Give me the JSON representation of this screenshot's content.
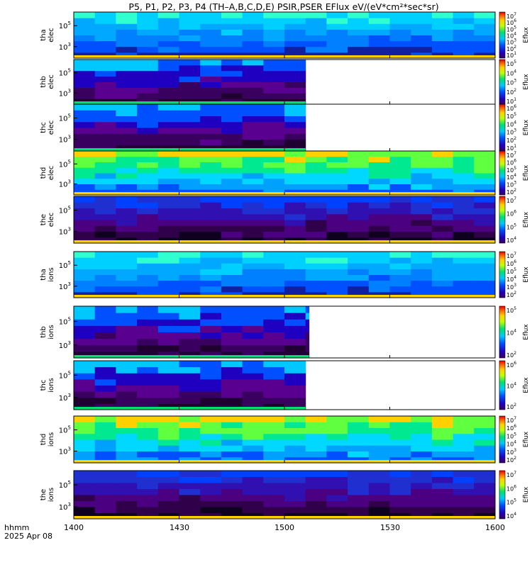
{
  "title": "P5, P1, P2, P3, P4 (TH–A,B,C,D,E) PSIR,PSER EFlux eV/(eV*cm²*sec*sr)",
  "footer": {
    "time_label": "hhmm",
    "date_label": "2025 Apr 08"
  },
  "chart_data": {
    "type": "heatmap",
    "x_axis": {
      "ticks": [
        "1400",
        "1430",
        "1500",
        "1530",
        "1600"
      ],
      "range": [
        "14:00",
        "16:00"
      ]
    },
    "colorbar_label": "Eflux",
    "panels": [
      {
        "probe": "tha",
        "species": "elec",
        "label_line1": "tha",
        "label_line2": "elec",
        "yticks": [
          {
            "base": "10",
            "exp": "5",
            "value": 100000
          },
          {
            "base": "10",
            "exp": "3",
            "value": 1000
          }
        ],
        "ylog_range": [
          1.9,
          6.3
        ],
        "palette": "blue",
        "cbar_ticks": [
          {
            "base": "10",
            "exp": "7"
          },
          {
            "base": "10",
            "exp": "6"
          },
          {
            "base": "10",
            "exp": "5"
          },
          {
            "base": "10",
            "exp": "4"
          },
          {
            "base": "10",
            "exp": "3"
          },
          {
            "base": "10",
            "exp": "2"
          },
          {
            "base": "10",
            "exp": "1"
          }
        ]
      },
      {
        "probe": "thb",
        "species": "elec",
        "label_line1": "thb",
        "label_line2": "elec",
        "yticks": [
          {
            "base": "10",
            "exp": "5",
            "value": 100000
          },
          {
            "base": "10",
            "exp": "3",
            "value": 1000
          }
        ],
        "ylog_range": [
          1.9,
          6.3
        ],
        "palette": "noisy",
        "cbar_ticks": [
          {
            "base": "10",
            "exp": "5"
          },
          {
            "base": "10",
            "exp": "4"
          },
          {
            "base": "10",
            "exp": "3"
          },
          {
            "base": "10",
            "exp": "2"
          },
          {
            "base": "10",
            "exp": "1"
          }
        ],
        "data_end": "15:06"
      },
      {
        "probe": "thc",
        "species": "elec",
        "label_line1": "thc",
        "label_line2": "elec",
        "yticks": [
          {
            "base": "10",
            "exp": "5",
            "value": 100000
          },
          {
            "base": "10",
            "exp": "3",
            "value": 1000
          }
        ],
        "ylog_range": [
          1.9,
          6.3
        ],
        "palette": "noisy",
        "cbar_ticks": [
          {
            "base": "10",
            "exp": "6"
          },
          {
            "base": "10",
            "exp": "5"
          },
          {
            "base": "10",
            "exp": "4"
          },
          {
            "base": "10",
            "exp": "3"
          },
          {
            "base": "10",
            "exp": "2"
          },
          {
            "base": "10",
            "exp": "1"
          }
        ],
        "data_end": "15:06"
      },
      {
        "probe": "thd",
        "species": "elec",
        "label_line1": "thd",
        "label_line2": "elec",
        "yticks": [
          {
            "base": "10",
            "exp": "5",
            "value": 100000
          },
          {
            "base": "10",
            "exp": "3",
            "value": 1000
          }
        ],
        "ylog_range": [
          1.9,
          6.3
        ],
        "palette": "green",
        "cbar_ticks": [
          {
            "base": "10",
            "exp": "7"
          },
          {
            "base": "10",
            "exp": "6"
          },
          {
            "base": "10",
            "exp": "5"
          },
          {
            "base": "10",
            "exp": "4"
          },
          {
            "base": "10",
            "exp": "3"
          },
          {
            "base": "10",
            "exp": "2"
          }
        ]
      },
      {
        "probe": "the",
        "species": "elec",
        "label_line1": "the",
        "label_line2": "elec",
        "yticks": [
          {
            "base": "10",
            "exp": "5",
            "value": 100000
          },
          {
            "base": "10",
            "exp": "3",
            "value": 1000
          }
        ],
        "ylog_range": [
          1.9,
          6.3
        ],
        "palette": "dark",
        "cbar_ticks": [
          {
            "base": "10",
            "exp": "7"
          },
          {
            "base": "10",
            "exp": "6"
          },
          {
            "base": "10",
            "exp": "5"
          },
          {
            "base": "10",
            "exp": "4"
          }
        ]
      },
      {
        "probe": "tha",
        "species": "ions",
        "label_line1": "tha",
        "label_line2": "ions",
        "yticks": [
          {
            "base": "10",
            "exp": "5",
            "value": 100000
          },
          {
            "base": "10",
            "exp": "3",
            "value": 1000
          }
        ],
        "ylog_range": [
          1.9,
          6.3
        ],
        "palette": "blue",
        "cbar_ticks": [
          {
            "base": "10",
            "exp": "7"
          },
          {
            "base": "10",
            "exp": "6"
          },
          {
            "base": "10",
            "exp": "5"
          },
          {
            "base": "10",
            "exp": "4"
          },
          {
            "base": "10",
            "exp": "3"
          },
          {
            "base": "10",
            "exp": "2"
          }
        ]
      },
      {
        "probe": "thb",
        "species": "ions",
        "label_line1": "thb",
        "label_line2": "ions",
        "yticks": [
          {
            "base": "10",
            "exp": "5",
            "value": 100000
          },
          {
            "base": "10",
            "exp": "3",
            "value": 1000
          }
        ],
        "ylog_range": [
          1.9,
          6.3
        ],
        "palette": "noisy",
        "cbar_ticks": [
          {
            "base": "10",
            "exp": "5"
          },
          {
            "base": "10",
            "exp": "4"
          },
          {
            "base": "10",
            "exp": "2"
          }
        ],
        "data_end": "15:07"
      },
      {
        "probe": "thc",
        "species": "ions",
        "label_line1": "thc",
        "label_line2": "ions",
        "yticks": [
          {
            "base": "10",
            "exp": "5",
            "value": 100000
          },
          {
            "base": "10",
            "exp": "3",
            "value": 1000
          }
        ],
        "ylog_range": [
          1.9,
          6.3
        ],
        "palette": "noisy",
        "cbar_ticks": [
          {
            "base": "10",
            "exp": "6"
          },
          {
            "base": "10",
            "exp": "4"
          },
          {
            "base": "10",
            "exp": "2"
          }
        ],
        "data_end": "15:06"
      },
      {
        "probe": "thd",
        "species": "ions",
        "label_line1": "thd",
        "label_line2": "ions",
        "yticks": [
          {
            "base": "10",
            "exp": "5",
            "value": 100000
          },
          {
            "base": "10",
            "exp": "3",
            "value": 1000
          }
        ],
        "ylog_range": [
          1.9,
          6.3
        ],
        "palette": "green",
        "cbar_ticks": [
          {
            "base": "10",
            "exp": "7"
          },
          {
            "base": "10",
            "exp": "6"
          },
          {
            "base": "10",
            "exp": "5"
          },
          {
            "base": "10",
            "exp": "4"
          },
          {
            "base": "10",
            "exp": "3"
          },
          {
            "base": "10",
            "exp": "2"
          }
        ]
      },
      {
        "probe": "the",
        "species": "ions",
        "label_line1": "the",
        "label_line2": "ions",
        "yticks": [
          {
            "base": "10",
            "exp": "5",
            "value": 100000
          },
          {
            "base": "10",
            "exp": "3",
            "value": 1000
          }
        ],
        "ylog_range": [
          1.9,
          6.3
        ],
        "palette": "dark",
        "cbar_ticks": [
          {
            "base": "10",
            "exp": "7"
          },
          {
            "base": "10",
            "exp": "6"
          },
          {
            "base": "10",
            "exp": "5"
          },
          {
            "base": "10",
            "exp": "4"
          }
        ]
      }
    ]
  }
}
